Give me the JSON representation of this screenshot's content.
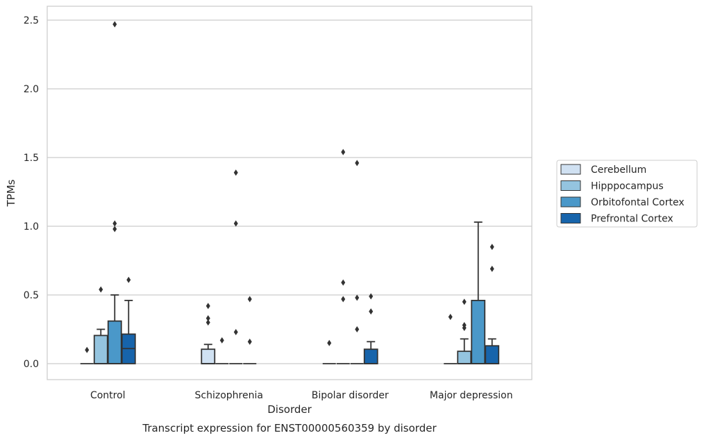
{
  "caption": "Transcript expression for ENST00000560359 by disorder",
  "chart_data": {
    "type": "box",
    "xlabel": "Disorder",
    "ylabel": "TPMs",
    "ylim": [
      -0.12,
      2.6
    ],
    "yticks": [
      "0.0",
      "0.5",
      "1.0",
      "1.5",
      "2.0",
      "2.5"
    ],
    "ytick_values": [
      0.0,
      0.5,
      1.0,
      1.5,
      2.0,
      2.5
    ],
    "grid": "horizontal",
    "legend_position": "right",
    "categories": [
      "Control",
      "Schizophrenia",
      "Bipolar disorder",
      "Major depression"
    ],
    "series": [
      {
        "name": "Cerebellum",
        "color": "#d0e1f2",
        "boxes": [
          {
            "q1": 0,
            "median": 0,
            "q3": 0,
            "whisker_low": 0,
            "whisker_high": 0,
            "outliers": [
              0.1
            ]
          },
          {
            "q1": 0,
            "median": 0,
            "q3": 0.105,
            "whisker_low": 0,
            "whisker_high": 0.14,
            "outliers": [
              0.42,
              0.33,
              0.3
            ]
          },
          {
            "q1": 0,
            "median": 0,
            "q3": 0,
            "whisker_low": 0,
            "whisker_high": 0,
            "outliers": [
              0.15
            ]
          },
          {
            "q1": 0,
            "median": 0,
            "q3": 0,
            "whisker_low": 0,
            "whisker_high": 0,
            "outliers": [
              0.34
            ]
          }
        ]
      },
      {
        "name": "Hipppocampus",
        "color": "#94c4df",
        "boxes": [
          {
            "q1": 0,
            "median": 0,
            "q3": 0.205,
            "whisker_low": 0,
            "whisker_high": 0.25,
            "outliers": [
              0.54
            ]
          },
          {
            "q1": 0,
            "median": 0,
            "q3": 0,
            "whisker_low": 0,
            "whisker_high": 0,
            "outliers": [
              0.17
            ]
          },
          {
            "q1": 0,
            "median": 0,
            "q3": 0,
            "whisker_low": 0,
            "whisker_high": 0,
            "outliers": [
              1.54,
              0.59,
              0.47
            ]
          },
          {
            "q1": 0,
            "median": 0,
            "q3": 0.09,
            "whisker_low": 0,
            "whisker_high": 0.18,
            "outliers": [
              0.45,
              0.28,
              0.26
            ]
          }
        ]
      },
      {
        "name": "Orbitofontal Cortex",
        "color": "#4a98c9",
        "boxes": [
          {
            "q1": 0,
            "median": 0,
            "q3": 0.31,
            "whisker_low": 0,
            "whisker_high": 0.5,
            "outliers": [
              2.47,
              1.02,
              0.98
            ]
          },
          {
            "q1": 0,
            "median": 0,
            "q3": 0,
            "whisker_low": 0,
            "whisker_high": 0,
            "outliers": [
              1.39,
              1.02,
              0.23
            ]
          },
          {
            "q1": 0,
            "median": 0,
            "q3": 0,
            "whisker_low": 0,
            "whisker_high": 0,
            "outliers": [
              1.46,
              0.48,
              0.25
            ]
          },
          {
            "q1": 0,
            "median": 0,
            "q3": 0.46,
            "whisker_low": 0,
            "whisker_high": 1.03,
            "outliers": []
          }
        ]
      },
      {
        "name": "Prefrontal Cortex",
        "color": "#1764ab",
        "boxes": [
          {
            "q1": 0,
            "median": 0.11,
            "q3": 0.215,
            "whisker_low": 0,
            "whisker_high": 0.46,
            "outliers": [
              0.61
            ]
          },
          {
            "q1": 0,
            "median": 0,
            "q3": 0,
            "whisker_low": 0,
            "whisker_high": 0,
            "outliers": [
              0.47,
              0.16
            ]
          },
          {
            "q1": 0,
            "median": 0,
            "q3": 0.105,
            "whisker_low": 0,
            "whisker_high": 0.16,
            "outliers": [
              0.49,
              0.38
            ]
          },
          {
            "q1": 0,
            "median": 0,
            "q3": 0.13,
            "whisker_low": 0,
            "whisker_high": 0.18,
            "outliers": [
              0.85,
              0.69
            ]
          }
        ]
      }
    ]
  }
}
